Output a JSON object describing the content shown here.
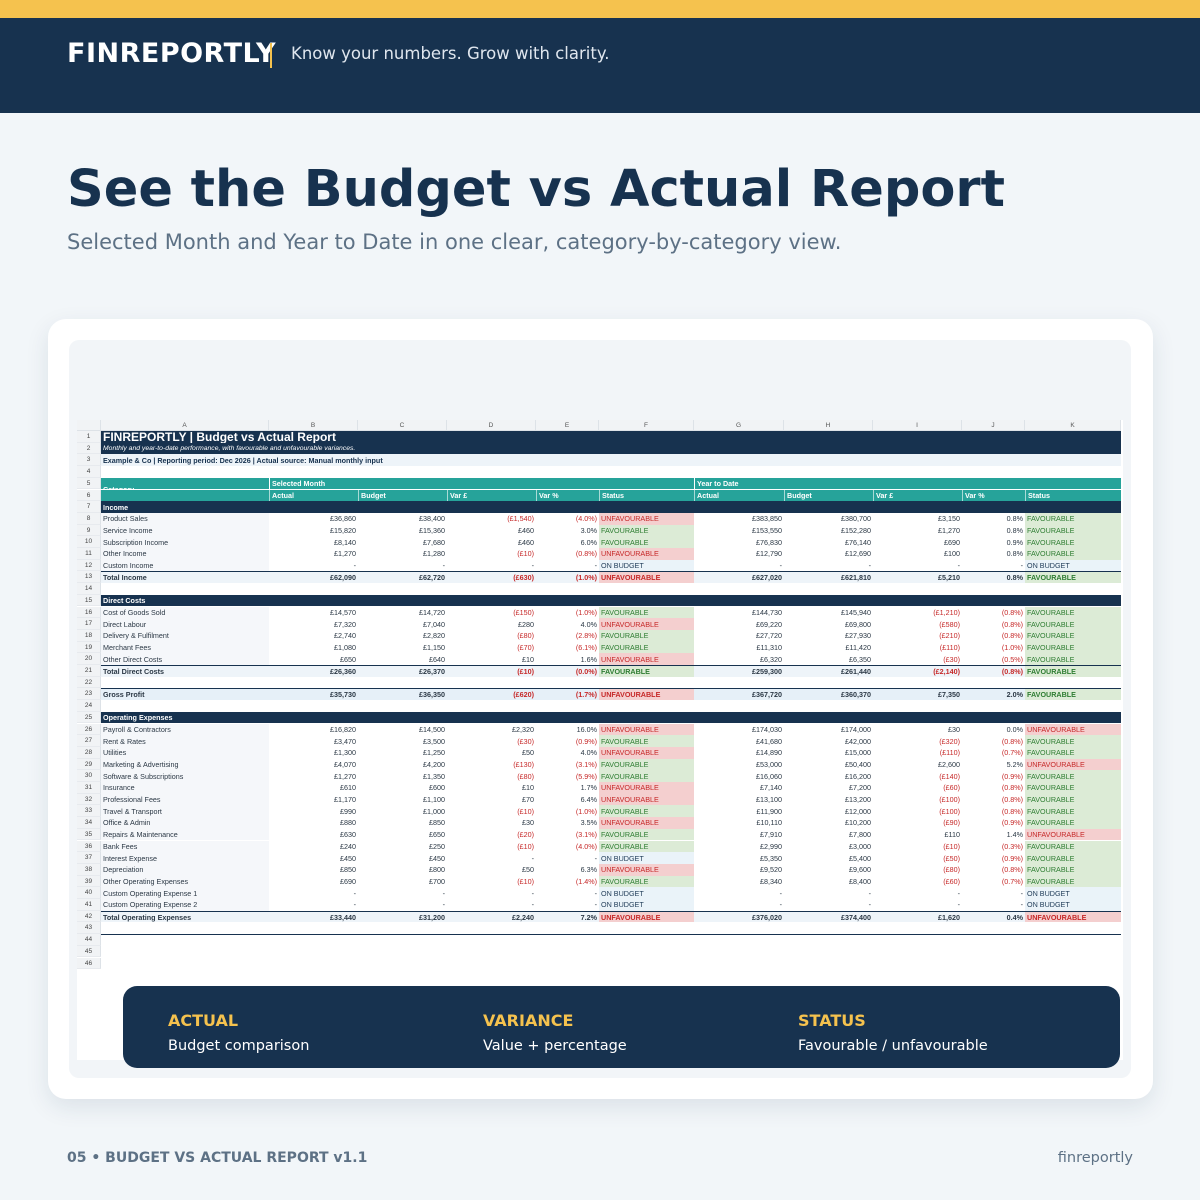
{
  "brand": {
    "logo": "FINREPORTLY",
    "tagline": "Know your numbers. Grow with clarity.",
    "accent": "#f5c24e",
    "navy": "#17324f"
  },
  "hero": {
    "title": "See the Budget vs Actual Report",
    "subtitle": "Selected Month and Year to Date in one clear, category-by-category view."
  },
  "sheet": {
    "columns": [
      "A",
      "B",
      "C",
      "D",
      "E",
      "F",
      "G",
      "H",
      "I",
      "J",
      "K"
    ],
    "title": "FINREPORTLY | Budget vs Actual Report",
    "description": "Monthly and year-to-date performance, with favourable and unfavourable variances.",
    "info": "Example & Co | Reporting period: Dec 2026 | Actual source: Manual monthly input",
    "category_header": "Category",
    "selected_month_label": "Selected Month",
    "ytd_label": "Year to Date",
    "subheaders": [
      "Actual",
      "Budget",
      "Var £",
      "Var %",
      "Status",
      "Actual",
      "Budget",
      "Var £",
      "Var %",
      "Status"
    ],
    "section_income": "Income",
    "section_direct": "Direct Costs",
    "section_opex": "Operating Expenses",
    "income_rows": [
      {
        "cat": "Product Sales",
        "a": "£36,860",
        "b": "£38,400",
        "v": "(£1,540)",
        "p": "(4.0%)",
        "s": "UNFAVOURABLE",
        "ya": "£383,850",
        "yb": "£380,700",
        "yv": "£3,150",
        "yp": "0.8%",
        "ys": "FAVOURABLE"
      },
      {
        "cat": "Service Income",
        "a": "£15,820",
        "b": "£15,360",
        "v": "£460",
        "p": "3.0%",
        "s": "FAVOURABLE",
        "ya": "£153,550",
        "yb": "£152,280",
        "yv": "£1,270",
        "yp": "0.8%",
        "ys": "FAVOURABLE"
      },
      {
        "cat": "Subscription Income",
        "a": "£8,140",
        "b": "£7,680",
        "v": "£460",
        "p": "6.0%",
        "s": "FAVOURABLE",
        "ya": "£76,830",
        "yb": "£76,140",
        "yv": "£690",
        "yp": "0.9%",
        "ys": "FAVOURABLE"
      },
      {
        "cat": "Other Income",
        "a": "£1,270",
        "b": "£1,280",
        "v": "(£10)",
        "p": "(0.8%)",
        "s": "UNFAVOURABLE",
        "ya": "£12,790",
        "yb": "£12,690",
        "yv": "£100",
        "yp": "0.8%",
        "ys": "FAVOURABLE"
      },
      {
        "cat": "Custom Income",
        "a": "-",
        "b": "-",
        "v": "-",
        "p": "-",
        "s": "ON BUDGET",
        "ya": "-",
        "yb": "-",
        "yv": "-",
        "yp": "-",
        "ys": "ON BUDGET"
      }
    ],
    "total_income": {
      "cat": "Total Income",
      "a": "£62,090",
      "b": "£62,720",
      "v": "(£630)",
      "p": "(1.0%)",
      "s": "UNFAVOURABLE",
      "ya": "£627,020",
      "yb": "£621,810",
      "yv": "£5,210",
      "yp": "0.8%",
      "ys": "FAVOURABLE"
    },
    "direct_rows": [
      {
        "cat": "Cost of Goods Sold",
        "a": "£14,570",
        "b": "£14,720",
        "v": "(£150)",
        "p": "(1.0%)",
        "s": "FAVOURABLE",
        "ya": "£144,730",
        "yb": "£145,940",
        "yv": "(£1,210)",
        "yp": "(0.8%)",
        "ys": "FAVOURABLE"
      },
      {
        "cat": "Direct Labour",
        "a": "£7,320",
        "b": "£7,040",
        "v": "£280",
        "p": "4.0%",
        "s": "UNFAVOURABLE",
        "ya": "£69,220",
        "yb": "£69,800",
        "yv": "(£580)",
        "yp": "(0.8%)",
        "ys": "FAVOURABLE"
      },
      {
        "cat": "Delivery & Fulfilment",
        "a": "£2,740",
        "b": "£2,820",
        "v": "(£80)",
        "p": "(2.8%)",
        "s": "FAVOURABLE",
        "ya": "£27,720",
        "yb": "£27,930",
        "yv": "(£210)",
        "yp": "(0.8%)",
        "ys": "FAVOURABLE"
      },
      {
        "cat": "Merchant Fees",
        "a": "£1,080",
        "b": "£1,150",
        "v": "(£70)",
        "p": "(6.1%)",
        "s": "FAVOURABLE",
        "ya": "£11,310",
        "yb": "£11,420",
        "yv": "(£110)",
        "yp": "(1.0%)",
        "ys": "FAVOURABLE"
      },
      {
        "cat": "Other Direct Costs",
        "a": "£650",
        "b": "£640",
        "v": "£10",
        "p": "1.6%",
        "s": "UNFAVOURABLE",
        "ya": "£6,320",
        "yb": "£6,350",
        "yv": "(£30)",
        "yp": "(0.5%)",
        "ys": "FAVOURABLE"
      }
    ],
    "total_direct": {
      "cat": "Total Direct Costs",
      "a": "£26,360",
      "b": "£26,370",
      "v": "(£10)",
      "p": "(0.0%)",
      "s": "FAVOURABLE",
      "ya": "£259,300",
      "yb": "£261,440",
      "yv": "(£2,140)",
      "yp": "(0.8%)",
      "ys": "FAVOURABLE"
    },
    "gross_profit": {
      "cat": "Gross Profit",
      "a": "£35,730",
      "b": "£36,350",
      "v": "(£620)",
      "p": "(1.7%)",
      "s": "UNFAVOURABLE",
      "ya": "£367,720",
      "yb": "£360,370",
      "yv": "£7,350",
      "yp": "2.0%",
      "ys": "FAVOURABLE"
    },
    "opex_rows": [
      {
        "cat": "Payroll & Contractors",
        "a": "£16,820",
        "b": "£14,500",
        "v": "£2,320",
        "p": "16.0%",
        "s": "UNFAVOURABLE",
        "ya": "£174,030",
        "yb": "£174,000",
        "yv": "£30",
        "yp": "0.0%",
        "ys": "UNFAVOURABLE"
      },
      {
        "cat": "Rent & Rates",
        "a": "£3,470",
        "b": "£3,500",
        "v": "(£30)",
        "p": "(0.9%)",
        "s": "FAVOURABLE",
        "ya": "£41,680",
        "yb": "£42,000",
        "yv": "(£320)",
        "yp": "(0.8%)",
        "ys": "FAVOURABLE"
      },
      {
        "cat": "Utilities",
        "a": "£1,300",
        "b": "£1,250",
        "v": "£50",
        "p": "4.0%",
        "s": "UNFAVOURABLE",
        "ya": "£14,890",
        "yb": "£15,000",
        "yv": "(£110)",
        "yp": "(0.7%)",
        "ys": "FAVOURABLE"
      },
      {
        "cat": "Marketing & Advertising",
        "a": "£4,070",
        "b": "£4,200",
        "v": "(£130)",
        "p": "(3.1%)",
        "s": "FAVOURABLE",
        "ya": "£53,000",
        "yb": "£50,400",
        "yv": "£2,600",
        "yp": "5.2%",
        "ys": "UNFAVOURABLE"
      },
      {
        "cat": "Software & Subscriptions",
        "a": "£1,270",
        "b": "£1,350",
        "v": "(£80)",
        "p": "(5.9%)",
        "s": "FAVOURABLE",
        "ya": "£16,060",
        "yb": "£16,200",
        "yv": "(£140)",
        "yp": "(0.9%)",
        "ys": "FAVOURABLE"
      },
      {
        "cat": "Insurance",
        "a": "£610",
        "b": "£600",
        "v": "£10",
        "p": "1.7%",
        "s": "UNFAVOURABLE",
        "ya": "£7,140",
        "yb": "£7,200",
        "yv": "(£60)",
        "yp": "(0.8%)",
        "ys": "FAVOURABLE"
      },
      {
        "cat": "Professional Fees",
        "a": "£1,170",
        "b": "£1,100",
        "v": "£70",
        "p": "6.4%",
        "s": "UNFAVOURABLE",
        "ya": "£13,100",
        "yb": "£13,200",
        "yv": "(£100)",
        "yp": "(0.8%)",
        "ys": "FAVOURABLE"
      },
      {
        "cat": "Travel & Transport",
        "a": "£990",
        "b": "£1,000",
        "v": "(£10)",
        "p": "(1.0%)",
        "s": "FAVOURABLE",
        "ya": "£11,900",
        "yb": "£12,000",
        "yv": "(£100)",
        "yp": "(0.8%)",
        "ys": "FAVOURABLE"
      },
      {
        "cat": "Office & Admin",
        "a": "£880",
        "b": "£850",
        "v": "£30",
        "p": "3.5%",
        "s": "UNFAVOURABLE",
        "ya": "£10,110",
        "yb": "£10,200",
        "yv": "(£90)",
        "yp": "(0.9%)",
        "ys": "FAVOURABLE"
      },
      {
        "cat": "Repairs & Maintenance",
        "a": "£630",
        "b": "£650",
        "v": "(£20)",
        "p": "(3.1%)",
        "s": "FAVOURABLE",
        "ya": "£7,910",
        "yb": "£7,800",
        "yv": "£110",
        "yp": "1.4%",
        "ys": "UNFAVOURABLE"
      },
      {
        "cat": "Bank Fees",
        "a": "£240",
        "b": "£250",
        "v": "(£10)",
        "p": "(4.0%)",
        "s": "FAVOURABLE",
        "ya": "£2,990",
        "yb": "£3,000",
        "yv": "(£10)",
        "yp": "(0.3%)",
        "ys": "FAVOURABLE"
      },
      {
        "cat": "Interest Expense",
        "a": "£450",
        "b": "£450",
        "v": "-",
        "p": "-",
        "s": "ON BUDGET",
        "ya": "£5,350",
        "yb": "£5,400",
        "yv": "(£50)",
        "yp": "(0.9%)",
        "ys": "FAVOURABLE"
      },
      {
        "cat": "Depreciation",
        "a": "£850",
        "b": "£800",
        "v": "£50",
        "p": "6.3%",
        "s": "UNFAVOURABLE",
        "ya": "£9,520",
        "yb": "£9,600",
        "yv": "(£80)",
        "yp": "(0.8%)",
        "ys": "FAVOURABLE"
      },
      {
        "cat": "Other Operating Expenses",
        "a": "£690",
        "b": "£700",
        "v": "(£10)",
        "p": "(1.4%)",
        "s": "FAVOURABLE",
        "ya": "£8,340",
        "yb": "£8,400",
        "yv": "(£60)",
        "yp": "(0.7%)",
        "ys": "FAVOURABLE"
      },
      {
        "cat": "Custom Operating Expense 1",
        "a": "-",
        "b": "-",
        "v": "-",
        "p": "-",
        "s": "ON BUDGET",
        "ya": "-",
        "yb": "-",
        "yv": "-",
        "yp": "-",
        "ys": "ON BUDGET"
      },
      {
        "cat": "Custom Operating Expense 2",
        "a": "-",
        "b": "-",
        "v": "-",
        "p": "-",
        "s": "ON BUDGET",
        "ya": "-",
        "yb": "-",
        "yv": "-",
        "yp": "-",
        "ys": "ON BUDGET"
      }
    ],
    "total_opex": {
      "cat": "Total Operating Expenses",
      "a": "£33,440",
      "b": "£31,200",
      "v": "£2,240",
      "p": "7.2%",
      "s": "UNFAVOURABLE",
      "ya": "£376,020",
      "yb": "£374,400",
      "yv": "£1,620",
      "yp": "0.4%",
      "ys": "UNFAVOURABLE"
    }
  },
  "overlay": [
    {
      "title": "ACTUAL",
      "desc": "Budget comparison"
    },
    {
      "title": "VARIANCE",
      "desc": "Value + percentage"
    },
    {
      "title": "STATUS",
      "desc": "Favourable / unfavourable"
    }
  ],
  "footer": {
    "left": "05  •  BUDGET VS ACTUAL REPORT v1.1",
    "right": "finreportly"
  }
}
